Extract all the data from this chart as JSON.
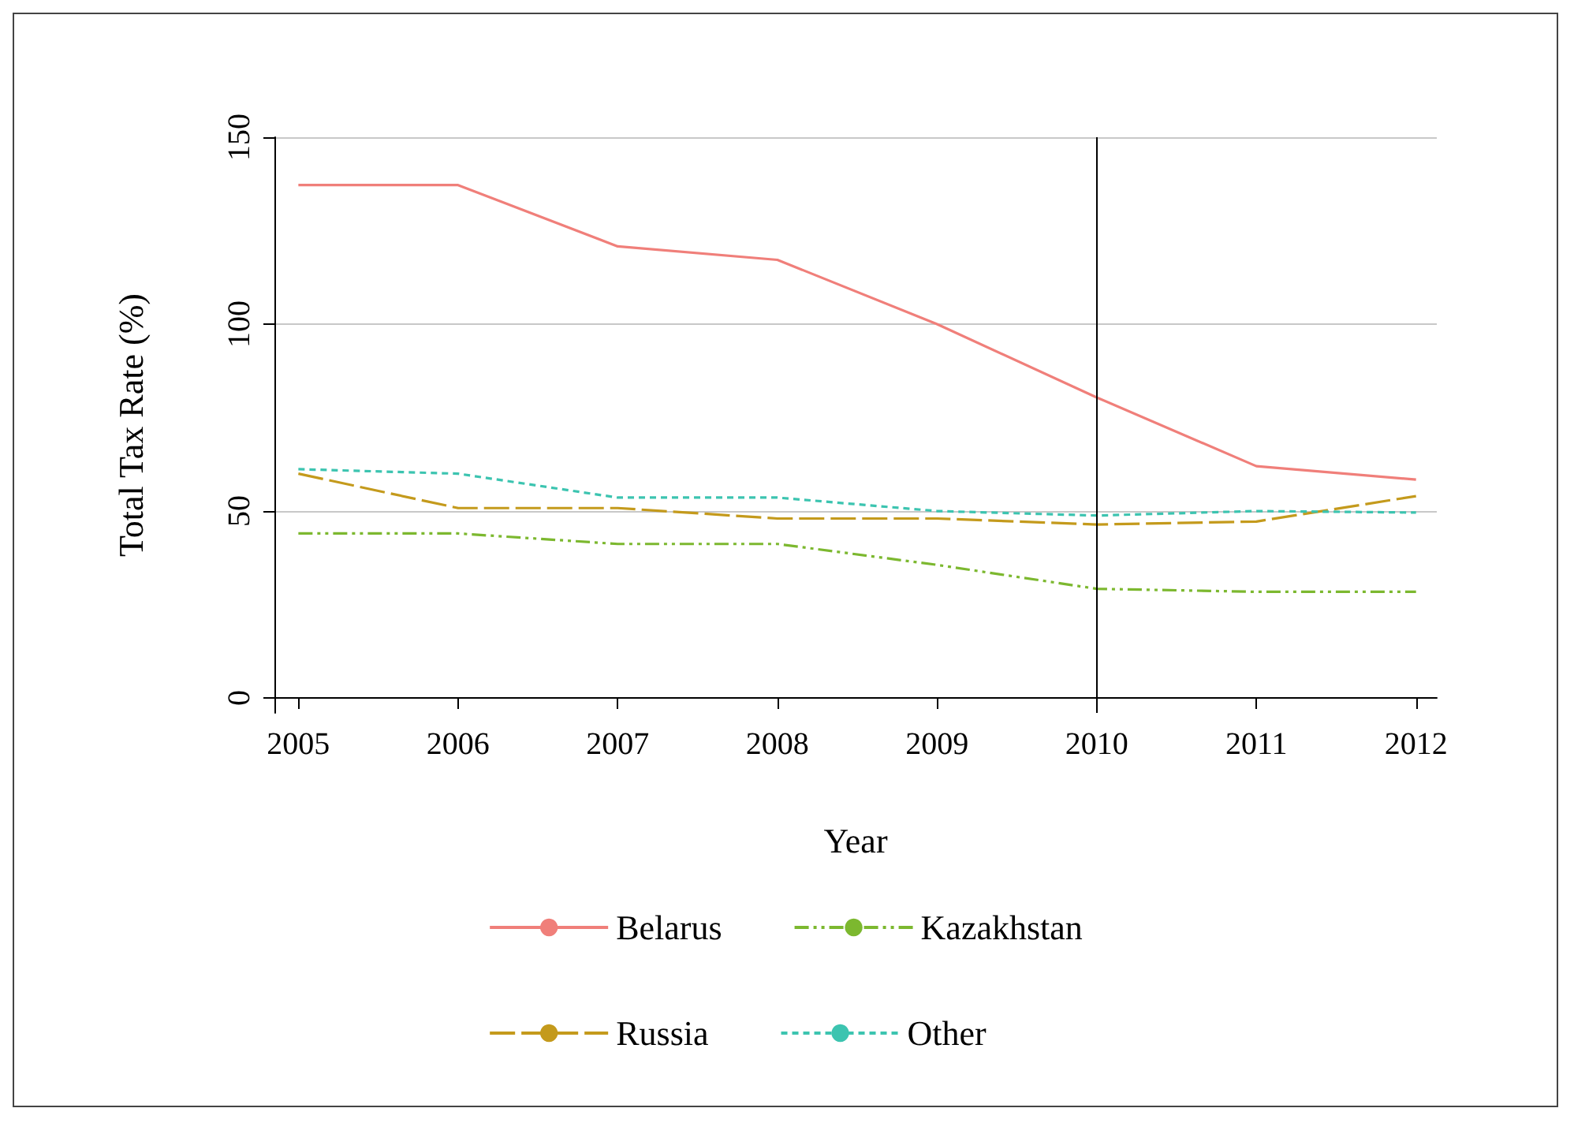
{
  "chart_data": {
    "type": "line",
    "xlabel": "Year",
    "ylabel": "Total Tax Rate (%)",
    "x": [
      2005,
      2006,
      2007,
      2008,
      2009,
      2010,
      2011,
      2012
    ],
    "series": [
      {
        "name": "Belarus",
        "color": "#f07f7a",
        "line_style": "solid",
        "values": [
          137.2,
          137.2,
          120.8,
          117.2,
          100,
          80.4,
          62,
          58.4
        ]
      },
      {
        "name": "Russia",
        "color": "#c49a1c",
        "line_style": "dashed",
        "values": [
          60,
          50.8,
          50.8,
          48,
          48,
          46.4,
          47.2,
          54
        ]
      },
      {
        "name": "Kazakhstan",
        "color": "#7cb82f",
        "line_style": "dashdotdot",
        "values": [
          44,
          44,
          41.2,
          41.2,
          35.6,
          29.2,
          28.4,
          28.4
        ]
      },
      {
        "name": "Other",
        "color": "#3cc4b0",
        "line_style": "dotted",
        "values": [
          61.2,
          60,
          53.6,
          53.6,
          50,
          48.8,
          50,
          49.6
        ]
      }
    ],
    "xlim": [
      2004.85,
      2012.13
    ],
    "xticks": [
      2005,
      2006,
      2007,
      2008,
      2009,
      2010,
      2011,
      2012
    ],
    "ylim": [
      -4,
      150
    ],
    "yticks": [
      0,
      50,
      100,
      150
    ],
    "ref_lines": [
      {
        "axis": "x",
        "value": 2010,
        "label": null,
        "color": "#000000"
      }
    ],
    "grid": "y",
    "legend": "bottom",
    "marker": "none"
  }
}
